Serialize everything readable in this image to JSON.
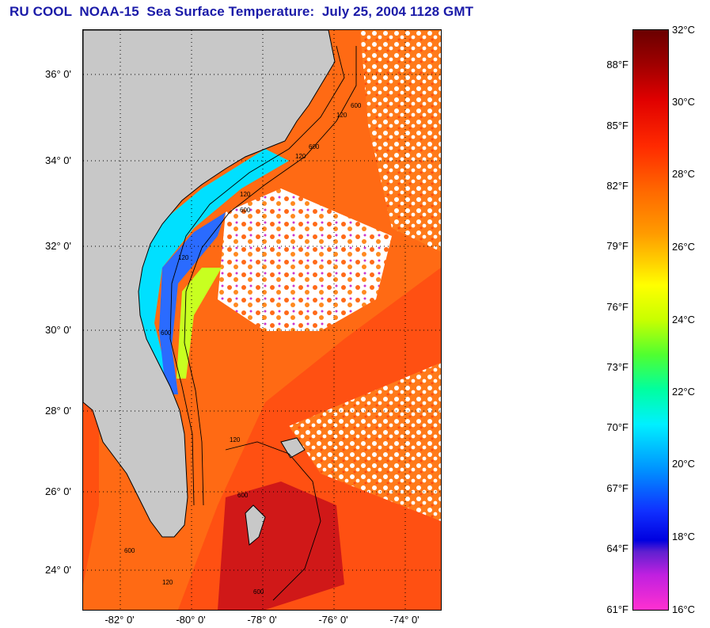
{
  "title": "RU COOL  NOAA-15  Sea Surface Temperature:  July 25, 2004 1128 GMT",
  "map": {
    "lat_labels": [
      "36° 0'",
      "34° 0'",
      "32° 0'",
      "30° 0'",
      "28° 0'",
      "26° 0'",
      "24° 0'"
    ],
    "lon_labels": [
      "-82° 0'",
      "-80° 0'",
      "-78° 0'",
      "-76° 0'",
      "-74° 0'"
    ],
    "isobath_labels": [
      "120",
      "600",
      "120",
      "600",
      "120",
      "600",
      "120",
      "600",
      "120",
      "600",
      "600",
      "120",
      "600"
    ]
  },
  "colorbar": {
    "celsius_labels": [
      "32°C",
      "30°C",
      "28°C",
      "26°C",
      "24°C",
      "22°C",
      "20°C",
      "18°C",
      "16°C"
    ],
    "fahrenheit_labels": [
      "88°F",
      "85°F",
      "82°F",
      "79°F",
      "76°F",
      "73°F",
      "70°F",
      "67°F",
      "64°F",
      "61°F"
    ],
    "colors": {
      "land": "#c8c8c8",
      "cloud": "#ffffff",
      "hot": "#e02010",
      "warm": "#ff7a1a",
      "cool": "#00e8ff",
      "cold": "#ff28d0"
    }
  }
}
